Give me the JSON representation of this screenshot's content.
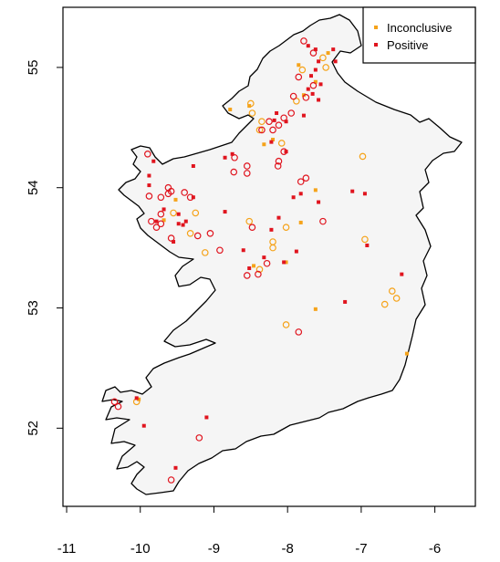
{
  "chart_data": {
    "type": "scatter",
    "title": "",
    "xlabel": "",
    "ylabel": "",
    "xlim": [
      -11.05,
      -5.45
    ],
    "ylim": [
      51.35,
      55.5
    ],
    "x_ticks": [
      "-11",
      "-10",
      "-9",
      "-8",
      "-7",
      "-6"
    ],
    "y_ticks": [
      "52",
      "53",
      "54",
      "55"
    ],
    "legend": {
      "position": "top-right",
      "entries": [
        {
          "label": "Inconclusive",
          "color": "#f5a31a"
        },
        {
          "label": "Positive",
          "color": "#e0141e"
        }
      ]
    },
    "series": [
      {
        "name": "Inconclusive",
        "color": "#f5a31a",
        "filled": [
          [
            -7.45,
            55.12
          ],
          [
            -7.85,
            55.02
          ],
          [
            -8.52,
            54.68
          ],
          [
            -8.78,
            54.65
          ],
          [
            -7.78,
            54.77
          ],
          [
            -7.62,
            54.88
          ],
          [
            -8.32,
            54.36
          ],
          [
            -8.2,
            54.4
          ],
          [
            -9.52,
            53.9
          ],
          [
            -9.68,
            53.73
          ],
          [
            -7.62,
            53.98
          ],
          [
            -7.82,
            53.71
          ],
          [
            -8.02,
            53.38
          ],
          [
            -8.46,
            53.35
          ],
          [
            -7.62,
            52.99
          ],
          [
            -6.38,
            52.62
          ],
          [
            -10.02,
            52.24
          ]
        ],
        "hollow": [
          [
            -7.52,
            55.08
          ],
          [
            -7.8,
            54.98
          ],
          [
            -7.48,
            55.0
          ],
          [
            -8.5,
            54.7
          ],
          [
            -8.48,
            54.62
          ],
          [
            -8.35,
            54.55
          ],
          [
            -8.38,
            54.48
          ],
          [
            -8.08,
            54.37
          ],
          [
            -7.88,
            54.72
          ],
          [
            -6.98,
            54.26
          ],
          [
            -9.25,
            53.79
          ],
          [
            -9.55,
            53.79
          ],
          [
            -8.52,
            53.72
          ],
          [
            -8.02,
            53.67
          ],
          [
            -8.2,
            53.55
          ],
          [
            -8.2,
            53.5
          ],
          [
            -9.12,
            53.46
          ],
          [
            -9.32,
            53.62
          ],
          [
            -6.95,
            53.57
          ],
          [
            -8.38,
            53.32
          ],
          [
            -8.02,
            52.86
          ],
          [
            -6.68,
            53.03
          ],
          [
            -6.58,
            53.14
          ],
          [
            -6.52,
            53.08
          ],
          [
            -10.05,
            52.22
          ]
        ]
      },
      {
        "name": "Positive",
        "color": "#e0141e",
        "filled": [
          [
            -7.72,
            55.18
          ],
          [
            -7.62,
            55.15
          ],
          [
            -7.58,
            55.05
          ],
          [
            -7.62,
            54.98
          ],
          [
            -7.68,
            54.93
          ],
          [
            -7.55,
            54.86
          ],
          [
            -7.66,
            54.78
          ],
          [
            -7.58,
            54.73
          ],
          [
            -7.35,
            55.05
          ],
          [
            -7.38,
            55.15
          ],
          [
            -8.15,
            54.62
          ],
          [
            -8.18,
            54.56
          ],
          [
            -8.02,
            54.55
          ],
          [
            -7.78,
            54.6
          ],
          [
            -7.72,
            54.82
          ],
          [
            -8.22,
            54.38
          ],
          [
            -8.02,
            54.3
          ],
          [
            -8.75,
            54.28
          ],
          [
            -8.85,
            54.25
          ],
          [
            -9.28,
            54.18
          ],
          [
            -9.82,
            54.22
          ],
          [
            -9.88,
            54.1
          ],
          [
            -9.88,
            54.02
          ],
          [
            -9.48,
            53.78
          ],
          [
            -9.28,
            53.92
          ],
          [
            -9.68,
            53.82
          ],
          [
            -9.78,
            53.72
          ],
          [
            -9.48,
            53.7
          ],
          [
            -9.42,
            53.69
          ],
          [
            -9.55,
            53.55
          ],
          [
            -9.38,
            53.72
          ],
          [
            -8.85,
            53.8
          ],
          [
            -8.12,
            53.75
          ],
          [
            -7.58,
            53.88
          ],
          [
            -7.92,
            53.92
          ],
          [
            -7.82,
            53.95
          ],
          [
            -7.12,
            53.97
          ],
          [
            -6.95,
            53.95
          ],
          [
            -8.22,
            53.65
          ],
          [
            -8.32,
            53.42
          ],
          [
            -8.6,
            53.48
          ],
          [
            -7.88,
            53.47
          ],
          [
            -8.05,
            53.38
          ],
          [
            -6.92,
            53.52
          ],
          [
            -8.52,
            53.33
          ],
          [
            -7.22,
            53.05
          ],
          [
            -6.45,
            53.28
          ],
          [
            -10.05,
            52.25
          ],
          [
            -9.95,
            52.02
          ],
          [
            -9.52,
            51.67
          ],
          [
            -9.1,
            52.09
          ]
        ],
        "hollow": [
          [
            -7.65,
            55.12
          ],
          [
            -7.78,
            55.22
          ],
          [
            -7.85,
            54.92
          ],
          [
            -7.65,
            54.85
          ],
          [
            -7.92,
            54.76
          ],
          [
            -7.75,
            54.75
          ],
          [
            -7.95,
            54.62
          ],
          [
            -8.05,
            54.58
          ],
          [
            -8.12,
            54.52
          ],
          [
            -8.2,
            54.48
          ],
          [
            -8.25,
            54.55
          ],
          [
            -8.35,
            54.48
          ],
          [
            -8.72,
            54.25
          ],
          [
            -8.73,
            54.13
          ],
          [
            -8.55,
            54.18
          ],
          [
            -8.55,
            54.12
          ],
          [
            -8.13,
            54.18
          ],
          [
            -8.12,
            54.22
          ],
          [
            -8.05,
            54.3
          ],
          [
            -9.9,
            54.28
          ],
          [
            -9.88,
            53.93
          ],
          [
            -9.62,
            53.95
          ],
          [
            -9.72,
            53.92
          ],
          [
            -9.4,
            53.96
          ],
          [
            -9.32,
            53.92
          ],
          [
            -9.62,
            54.0
          ],
          [
            -9.58,
            53.97
          ],
          [
            -9.72,
            53.78
          ],
          [
            -9.85,
            53.72
          ],
          [
            -9.78,
            53.67
          ],
          [
            -9.72,
            53.7
          ],
          [
            -9.58,
            53.58
          ],
          [
            -9.22,
            53.6
          ],
          [
            -9.05,
            53.62
          ],
          [
            -8.92,
            53.48
          ],
          [
            -8.48,
            53.67
          ],
          [
            -8.28,
            53.37
          ],
          [
            -8.55,
            53.27
          ],
          [
            -8.4,
            53.28
          ],
          [
            -7.82,
            54.05
          ],
          [
            -7.75,
            54.08
          ],
          [
            -7.52,
            53.72
          ],
          [
            -7.85,
            52.8
          ],
          [
            -10.3,
            52.18
          ],
          [
            -10.35,
            52.22
          ],
          [
            -9.2,
            51.92
          ],
          [
            -9.58,
            51.57
          ]
        ]
      }
    ]
  }
}
